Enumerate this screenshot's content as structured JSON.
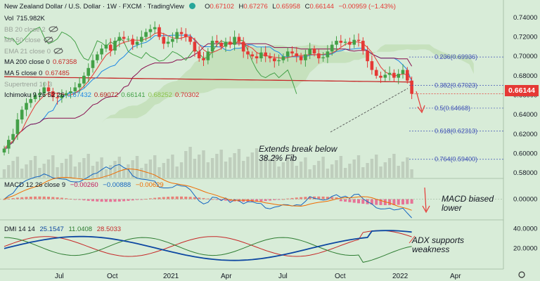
{
  "header": {
    "title": "New Zealand Dollar / U.S. Dollar · 1W · FXCM · TradingView",
    "ohlc": {
      "o_label": "O",
      "o": "0.67102",
      "h_label": "H",
      "h": "0.67276",
      "l_label": "L",
      "l": "0.65958",
      "c_label": "C",
      "c": "0.66144",
      "change": "−0.00959 (−1.43%)"
    }
  },
  "indicators": [
    {
      "name": "Vol",
      "values": [
        "715.982K"
      ],
      "colors": [
        "#131722"
      ],
      "muted": false,
      "eye": false
    },
    {
      "name": "BB 20 close 2",
      "values": [],
      "colors": [],
      "muted": true,
      "eye": true
    },
    {
      "name": "MA 50 close",
      "values": [],
      "colors": [],
      "muted": true,
      "eye": true
    },
    {
      "name": "EMA 21 close 0",
      "values": [],
      "colors": [],
      "muted": true,
      "eye": true
    },
    {
      "name": "MA 200 close 0",
      "values": [
        "0.67358"
      ],
      "colors": [
        "#c62828"
      ],
      "muted": false,
      "eye": false
    },
    {
      "name": "MA 5 close 0",
      "values": [
        "0.67485"
      ],
      "colors": [
        "#c62828"
      ],
      "muted": false,
      "eye": false
    },
    {
      "name": "Supertrend 10 3",
      "values": [],
      "colors": [],
      "muted": true,
      "eye": false
    },
    {
      "name": "Ichimoku 9 26 52 26",
      "values": [
        "0.67432",
        "0.69072",
        "0.66141",
        "0.68252",
        "0.70302"
      ],
      "colors": [
        "#1e88e5",
        "#b71c1c",
        "#43a047",
        "#8bc34a",
        "#d32f2f"
      ],
      "muted": false,
      "eye": false
    }
  ],
  "macd": {
    "label": "MACD 12 26 close 9",
    "values": [
      "−0.00260",
      "−0.00888",
      "−0.00629"
    ],
    "colors": [
      "#c2185b",
      "#1565c0",
      "#ef6c00"
    ]
  },
  "dmi": {
    "label": "DMI 14 14",
    "values": [
      "25.1547",
      "11.0408",
      "28.5033"
    ],
    "colors": [
      "#0d47a1",
      "#2e7d32",
      "#c62828"
    ]
  },
  "annotations": {
    "fib_break": [
      "Extends break below",
      "38.2% Fib"
    ],
    "macd_note": [
      "MACD biased",
      "lower"
    ],
    "adx_note": [
      "ADX supports",
      "weakness"
    ]
  },
  "colors": {
    "up": "#43a047",
    "down": "#e53935",
    "ma200": "#c62828",
    "ma5": "#e53935",
    "tenkan": "#1e88e5",
    "kijun": "#880e4f",
    "chikou": "#43a047",
    "cloud": "#b8d8a8",
    "fib": "#3f51b5",
    "current_price": "#e53935"
  },
  "chart_data": {
    "type": "candlestick",
    "symbol": "NZDUSD",
    "timeframe": "1W",
    "x_labels": [
      "Jul",
      "Oct",
      "2021",
      "Apr",
      "Jul",
      "Oct",
      "2022",
      "Apr"
    ],
    "price_axis": {
      "ticks": [
        "0.74000",
        "0.72000",
        "0.70000",
        "0.68000",
        "0.66000",
        "0.64000",
        "0.62000",
        "0.60000",
        "0.58000"
      ],
      "range": [
        0.575,
        0.745
      ]
    },
    "current_price": "0.66144",
    "ma200": 0.67358,
    "ma5": 0.67485,
    "fib_levels": [
      {
        "label": "0.236(0.69936)",
        "value": 0.69936
      },
      {
        "label": "0.382(0.67023)",
        "value": 0.67023
      },
      {
        "label": "0.5(0.64668)",
        "value": 0.64668
      },
      {
        "label": "0.618(0.62313)",
        "value": 0.62313
      },
      {
        "label": "0.764(0.59400)",
        "value": 0.594
      }
    ],
    "closes": [
      0.605,
      0.614,
      0.62,
      0.635,
      0.645,
      0.652,
      0.656,
      0.66,
      0.662,
      0.668,
      0.664,
      0.658,
      0.657,
      0.66,
      0.662,
      0.664,
      0.668,
      0.672,
      0.68,
      0.688,
      0.696,
      0.702,
      0.708,
      0.712,
      0.706,
      0.716,
      0.72,
      0.718,
      0.718,
      0.712,
      0.715,
      0.72,
      0.725,
      0.728,
      0.73,
      0.72,
      0.713,
      0.715,
      0.718,
      0.725,
      0.723,
      0.72,
      0.715,
      0.705,
      0.698,
      0.696,
      0.705,
      0.716,
      0.714,
      0.71,
      0.715,
      0.712,
      0.72,
      0.715,
      0.705,
      0.702,
      0.7,
      0.698,
      0.704,
      0.7,
      0.698,
      0.695,
      0.696,
      0.7,
      0.705,
      0.703,
      0.7,
      0.696,
      0.702,
      0.708,
      0.703,
      0.698,
      0.699,
      0.705,
      0.712,
      0.716,
      0.714,
      0.715,
      0.712,
      0.717,
      0.716,
      0.706,
      0.695,
      0.686,
      0.68,
      0.678,
      0.681,
      0.683,
      0.678,
      0.682,
      0.686,
      0.675,
      0.6614
    ],
    "macd_axis": {
      "ticks": [
        "0.00000"
      ]
    },
    "dmi_axis": {
      "ticks": [
        "40.0000",
        "20.0000"
      ]
    }
  }
}
